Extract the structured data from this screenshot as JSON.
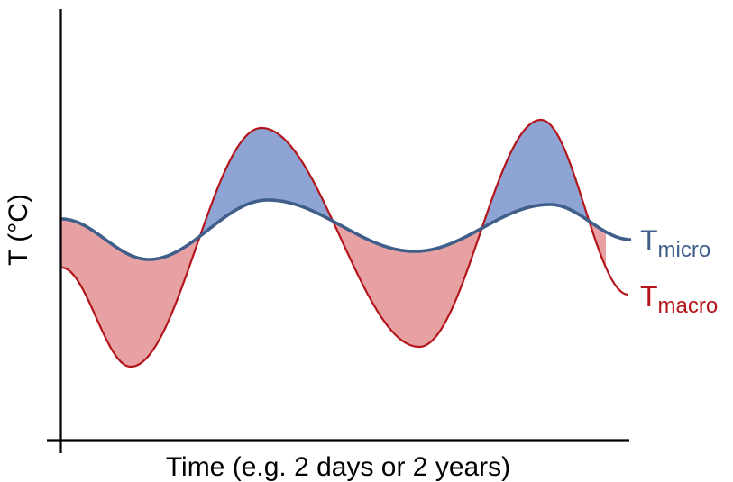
{
  "diagram": {
    "y_axis_label": "T (°C)",
    "x_axis_label": "Time (e.g. 2 days or 2 years)",
    "curves": [
      {
        "id": "micro",
        "symbol": "T",
        "subscript": "micro",
        "color": "#3f5f8a"
      },
      {
        "id": "macro",
        "symbol": "T",
        "subscript": "macro",
        "color": "#b3151b"
      }
    ],
    "fills": {
      "macro_above_micro": "#8da4d4",
      "macro_below_micro": "#e8a1a3"
    },
    "axis_color": "#000000"
  }
}
